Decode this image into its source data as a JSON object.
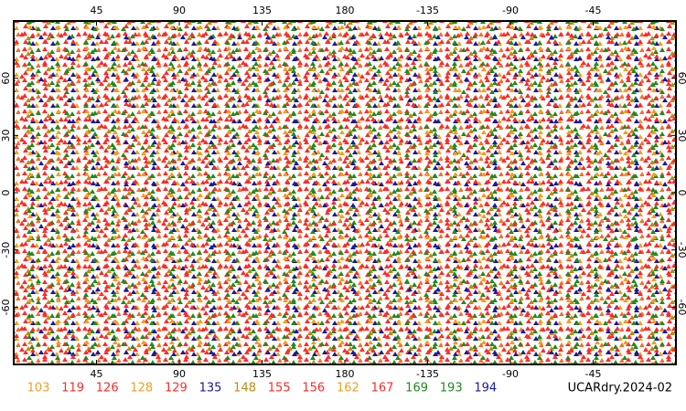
{
  "map": {
    "title": "UCARdry.2024-02",
    "xlim": [
      0,
      360
    ],
    "ylim": [
      -90,
      90
    ],
    "xticks": [
      45,
      90,
      135,
      180,
      -135,
      -90,
      -45
    ],
    "yticks": [
      60,
      30,
      0,
      -30,
      -60
    ],
    "legend": [
      {
        "name": "103",
        "color": "#f0a020"
      },
      {
        "name": "119",
        "color": "#ff2a2a"
      },
      {
        "name": "126",
        "color": "#ff2a2a"
      },
      {
        "name": "128",
        "color": "#f0a020"
      },
      {
        "name": "129",
        "color": "#ff2a2a"
      },
      {
        "name": "135",
        "color": "#1a1a9a"
      },
      {
        "name": "148",
        "color": "#c08a10"
      },
      {
        "name": "155",
        "color": "#ff2a2a"
      },
      {
        "name": "156",
        "color": "#ff2a2a"
      },
      {
        "name": "162",
        "color": "#f0a020"
      },
      {
        "name": "167",
        "color": "#ff2a2a"
      },
      {
        "name": "169",
        "color": "#208a20"
      },
      {
        "name": "193",
        "color": "#208a20"
      },
      {
        "name": "194",
        "color": "#1a1a9a"
      }
    ]
  }
}
